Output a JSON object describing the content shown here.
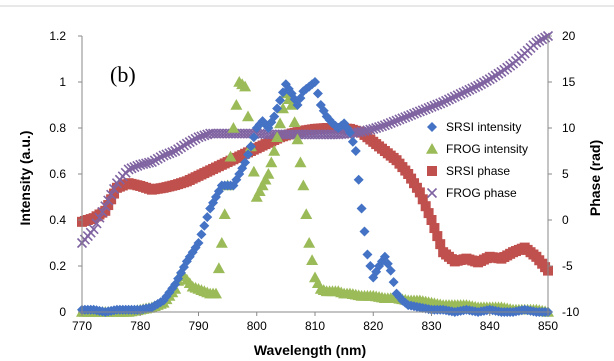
{
  "chart_data": {
    "type": "scatter",
    "panel_label": "(b)",
    "xlabel": "Wavelength (nm)",
    "ylabel": "Intensity (a.u.)",
    "y2label": "Phase (rad)",
    "xlim": [
      770,
      850
    ],
    "ylim": [
      0,
      1.2
    ],
    "y2lim": [
      -10,
      20
    ],
    "x_ticks": [
      "770",
      "780",
      "790",
      "800",
      "810",
      "820",
      "830",
      "840",
      "850"
    ],
    "y_ticks": [
      "0",
      "0.2",
      "0.4",
      "0.6",
      "0.8",
      "1",
      "1.2"
    ],
    "y2_ticks": [
      "-10",
      "-5",
      "0",
      "5",
      "10",
      "15",
      "20"
    ],
    "legend_position": "right",
    "grid": false,
    "colors": {
      "srsi_intensity": "#4472C4",
      "frog_intensity": "#9BBB59",
      "srsi_phase": "#C0504D",
      "frog_phase": "#8064A2"
    },
    "series": [
      {
        "name": "SRSI intensity",
        "axis": "left",
        "marker": "diamond",
        "x": [
          770,
          772,
          774,
          776,
          778,
          780,
          782,
          784,
          786,
          788,
          790,
          792,
          794,
          796,
          797,
          798,
          799,
          800,
          801,
          802,
          803,
          804,
          805,
          806,
          807,
          808,
          809,
          810,
          811,
          812,
          813,
          814,
          815,
          816,
          817,
          818,
          819,
          820,
          821,
          822,
          823,
          824,
          825,
          826,
          828,
          830,
          832,
          834,
          836,
          838,
          840,
          842,
          844,
          846,
          848,
          850
        ],
        "y": [
          0.01,
          0.01,
          0.0,
          0.01,
          0.01,
          0.01,
          0.02,
          0.05,
          0.12,
          0.22,
          0.3,
          0.45,
          0.55,
          0.55,
          0.6,
          0.65,
          0.72,
          0.8,
          0.83,
          0.8,
          0.85,
          0.92,
          0.99,
          0.95,
          0.9,
          0.96,
          0.98,
          1.0,
          0.9,
          0.85,
          0.82,
          0.8,
          0.82,
          0.78,
          0.7,
          0.45,
          0.25,
          0.15,
          0.2,
          0.24,
          0.18,
          0.08,
          0.05,
          0.03,
          0.02,
          0.01,
          0.01,
          0.0,
          0.01,
          0.0,
          0.01,
          0.0,
          0.0,
          0.01,
          0.0,
          0.0
        ]
      },
      {
        "name": "FROG intensity",
        "axis": "left",
        "marker": "triangle",
        "x": [
          770,
          772,
          774,
          776,
          778,
          780,
          782,
          784,
          786,
          787,
          788,
          789,
          790,
          791,
          792,
          793,
          794,
          795,
          796,
          797,
          798,
          799,
          800,
          801,
          802,
          803,
          804,
          805,
          806,
          807,
          808,
          809,
          810,
          811,
          812,
          813,
          814,
          815,
          816,
          818,
          820,
          822,
          824,
          826,
          828,
          830,
          832,
          834,
          836,
          838,
          840,
          842,
          844,
          846,
          848,
          850
        ],
        "y": [
          0.0,
          0.0,
          0.0,
          0.0,
          0.0,
          0.01,
          0.02,
          0.04,
          0.1,
          0.17,
          0.14,
          0.11,
          0.1,
          0.09,
          0.08,
          0.08,
          0.3,
          0.55,
          0.8,
          1.0,
          0.98,
          0.72,
          0.5,
          0.55,
          0.6,
          0.7,
          0.82,
          0.95,
          0.9,
          0.75,
          0.55,
          0.3,
          0.15,
          0.1,
          0.09,
          0.09,
          0.09,
          0.08,
          0.08,
          0.07,
          0.07,
          0.06,
          0.06,
          0.05,
          0.05,
          0.04,
          0.03,
          0.03,
          0.03,
          0.02,
          0.02,
          0.02,
          0.01,
          0.01,
          0.01,
          0.0
        ]
      },
      {
        "name": "SRSI phase",
        "axis": "right",
        "marker": "square",
        "x": [
          770,
          772,
          774,
          776,
          778,
          780,
          782,
          784,
          786,
          788,
          790,
          792,
          794,
          796,
          798,
          800,
          802,
          804,
          806,
          808,
          810,
          812,
          814,
          816,
          818,
          820,
          822,
          824,
          826,
          828,
          830,
          832,
          834,
          836,
          838,
          840,
          842,
          844,
          846,
          848,
          850
        ],
        "y": [
          -0.2,
          0.2,
          1.0,
          3.5,
          4.0,
          3.7,
          3.3,
          3.5,
          3.8,
          4.2,
          4.8,
          5.4,
          6.0,
          6.6,
          7.2,
          7.8,
          8.4,
          9.0,
          9.4,
          9.7,
          9.9,
          10.0,
          10.0,
          9.9,
          9.5,
          8.5,
          7.5,
          6.5,
          5.0,
          3.0,
          0.0,
          -3.5,
          -4.5,
          -4.2,
          -4.6,
          -4.0,
          -4.2,
          -3.5,
          -3.0,
          -4.0,
          -5.5
        ]
      },
      {
        "name": "FROG phase",
        "axis": "right",
        "marker": "x",
        "x": [
          770,
          772,
          774,
          776,
          778,
          780,
          782,
          784,
          786,
          788,
          790,
          792,
          794,
          796,
          798,
          800,
          802,
          804,
          806,
          808,
          810,
          812,
          814,
          816,
          818,
          820,
          822,
          824,
          826,
          828,
          830,
          832,
          834,
          836,
          838,
          840,
          842,
          844,
          846,
          848,
          850
        ],
        "y": [
          -2.5,
          -1.0,
          1.5,
          4.0,
          5.5,
          6.0,
          6.3,
          7.0,
          7.5,
          8.3,
          9.0,
          9.4,
          9.4,
          9.4,
          9.4,
          9.4,
          9.3,
          9.3,
          9.3,
          9.3,
          9.3,
          9.3,
          9.3,
          9.4,
          9.6,
          9.9,
          10.3,
          10.8,
          11.3,
          11.8,
          12.3,
          12.8,
          13.4,
          14.0,
          14.6,
          15.3,
          16.1,
          17.0,
          18.1,
          19.3,
          20.0
        ]
      }
    ]
  }
}
